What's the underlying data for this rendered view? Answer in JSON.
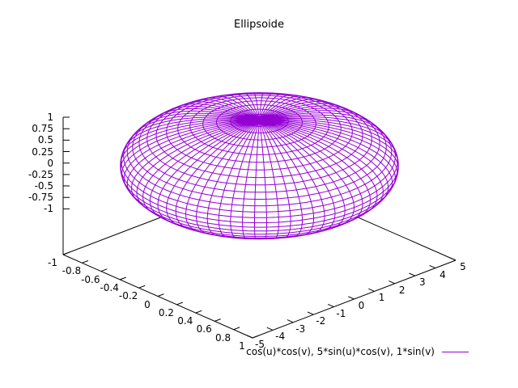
{
  "title": "Ellipsoide",
  "legend": {
    "label": "cos(u)*cos(v), 5*sin(u)*cos(v), 1*sin(v)"
  },
  "colors": {
    "background": "#ffffff",
    "axis": "#000000",
    "text": "#000000",
    "surface": "#9400d3"
  },
  "chart_data": {
    "type": "surface3d-parametric-wireframe",
    "title": "Ellipsoide",
    "legend_entry": "cos(u)*cos(v), 5*sin(u)*cos(v), 1*sin(v)",
    "equation": {
      "x": "cos(u)*cos(v)",
      "y": "5*sin(u)*cos(v)",
      "z": "1*sin(v)"
    },
    "surface": {
      "semi_axes": [
        1,
        5,
        1
      ],
      "u_range_deg": [
        -180,
        180
      ],
      "v_range_deg": [
        -90,
        90
      ],
      "u_step_deg": 5,
      "v_step_deg": 6,
      "sample_step_deg": 2,
      "hidden3d": true,
      "color": "#9400d3"
    },
    "axes": {
      "x": {
        "min": -1,
        "max": 1,
        "tick_step": 0.2,
        "ticks": [
          -1,
          -0.8,
          -0.6,
          -0.4,
          -0.2,
          0,
          0.2,
          0.4,
          0.6,
          0.8,
          1
        ],
        "labels": [
          "-1",
          "-0.8",
          "-0.6",
          "-0.4",
          "-0.2",
          "0",
          "0.2",
          "0.4",
          "0.6",
          "0.8",
          "1"
        ],
        "label_offset": [
          -13,
          10
        ]
      },
      "y": {
        "min": -5,
        "max": 5,
        "tick_step": 1,
        "ticks": [
          -5,
          -4,
          -3,
          -2,
          -1,
          0,
          1,
          2,
          3,
          4,
          5
        ],
        "labels": [
          "-5",
          "-4",
          "-3",
          "-2",
          "-1",
          "0",
          "1",
          "2",
          "3",
          "4",
          "5"
        ],
        "label_offset": [
          9,
          8
        ]
      },
      "z": {
        "min": -1,
        "max": 1,
        "tick_step": 0.25,
        "ticks": [
          -1,
          -0.75,
          -0.5,
          -0.25,
          0,
          0.25,
          0.5,
          0.75,
          1
        ],
        "labels": [
          "-1",
          "-0.75",
          "-0.5",
          "-0.25",
          "0",
          "0.25",
          "0.5",
          "0.75",
          "1"
        ],
        "label_right_edge": 66
      }
    },
    "view": {
      "rotation_note": "gnuplot-style view, ticslevel 0.5",
      "origin": [
        320.5,
        205.2
      ],
      "x_basis": [
        117,
        51.5
      ],
      "y_basis": [
        25.1,
        -9.6
      ],
      "z_basis": [
        0,
        -56.67
      ],
      "base_z": -2,
      "tick_len": 8
    }
  }
}
